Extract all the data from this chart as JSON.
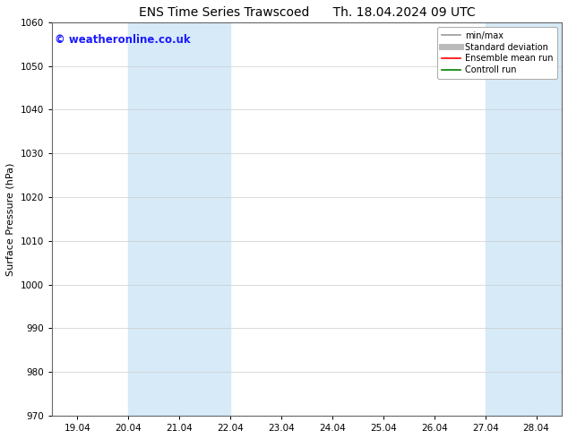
{
  "title": "ENS Time Series Trawscoed      Th. 18.04.2024 09 UTC",
  "ylabel": "Surface Pressure (hPa)",
  "ylim": [
    970,
    1060
  ],
  "yticks": [
    970,
    980,
    990,
    1000,
    1010,
    1020,
    1030,
    1040,
    1050,
    1060
  ],
  "xtick_labels": [
    "19.04",
    "20.04",
    "21.04",
    "22.04",
    "23.04",
    "24.04",
    "25.04",
    "26.04",
    "27.04",
    "28.04"
  ],
  "xtick_positions": [
    0,
    1,
    2,
    3,
    4,
    5,
    6,
    7,
    8,
    9
  ],
  "xlim": [
    -0.5,
    9.5
  ],
  "shaded_bands": [
    {
      "xmin": 1.0,
      "xmax": 3.0,
      "color": "#d6eaf8"
    },
    {
      "xmin": 8.0,
      "xmax": 9.5,
      "color": "#d6eaf8"
    }
  ],
  "watermark": "© weatheronline.co.uk",
  "watermark_color": "#1a1aff",
  "watermark_fontsize": 8.5,
  "legend_items": [
    {
      "label": "min/max",
      "color": "#999999",
      "lw": 1.2,
      "style": "solid"
    },
    {
      "label": "Standard deviation",
      "color": "#bbbbbb",
      "lw": 5,
      "style": "solid"
    },
    {
      "label": "Ensemble mean run",
      "color": "#ff0000",
      "lw": 1.2,
      "style": "solid"
    },
    {
      "label": "Controll run",
      "color": "#008000",
      "lw": 1.2,
      "style": "solid"
    }
  ],
  "bg_color": "#ffffff",
  "grid_color": "#cccccc",
  "title_fontsize": 10,
  "axis_label_fontsize": 8,
  "tick_fontsize": 7.5,
  "legend_fontsize": 7
}
